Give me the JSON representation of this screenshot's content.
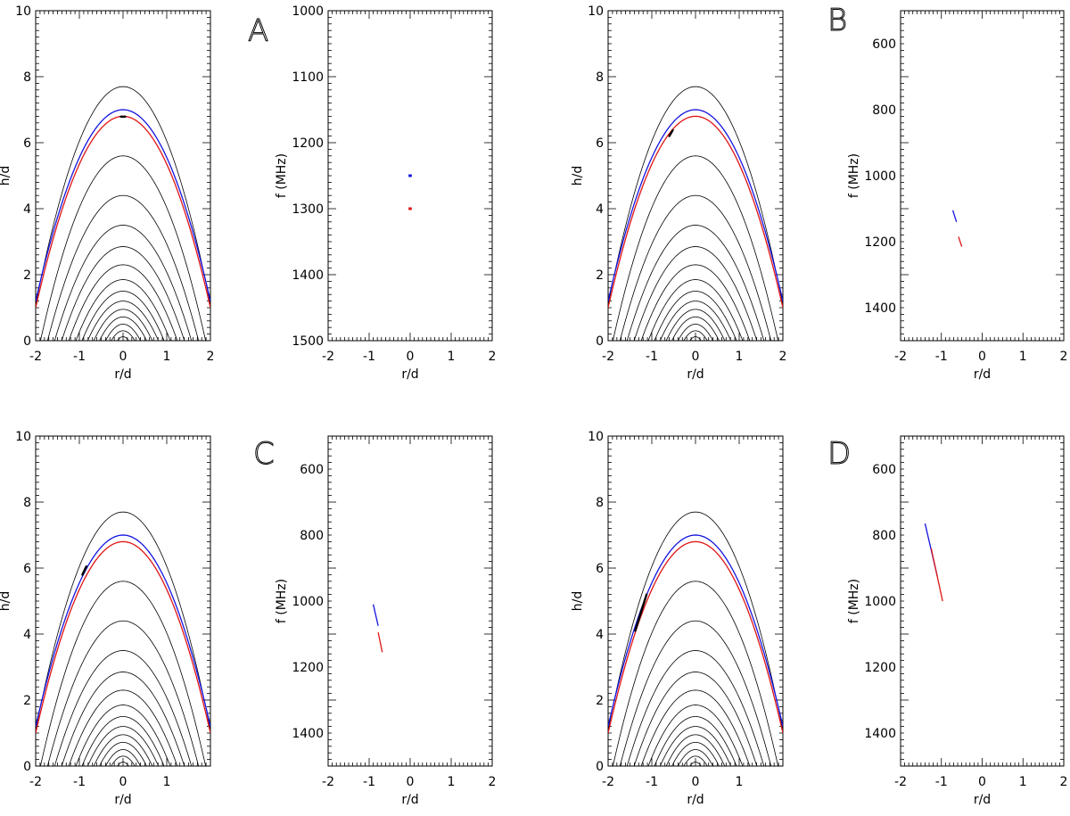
{
  "chart_data": [
    {
      "panel": "A",
      "left": {
        "type": "line",
        "xlabel": "r/d",
        "ylabel": "h/d",
        "xlim": [
          -2,
          2
        ],
        "ylim": [
          0,
          10
        ],
        "x_ticks": [
          "-2",
          "-1",
          "0",
          "1",
          "2"
        ],
        "y_ticks": [
          "0",
          "2",
          "4",
          "6",
          "8",
          "10"
        ],
        "field_line_peaks": [
          7.7,
          5.6,
          4.4,
          3.5,
          2.85,
          2.3,
          1.85,
          1.5,
          1.2,
          0.95,
          0.72,
          0.5,
          0.3,
          0.12
        ],
        "field_line_half_widths": [
          2.0,
          1.75,
          1.6,
          1.45,
          1.3,
          1.15,
          1.0,
          0.87,
          0.75,
          0.62,
          0.5,
          0.37,
          0.25,
          0.12
        ],
        "series": [
          {
            "name": "blue",
            "color": "#1414e0",
            "peak": 7.0,
            "edge_h": 1.2,
            "half_width": 2.0
          },
          {
            "name": "red",
            "color": "#e01414",
            "peak": 6.8,
            "edge_h": 1.0,
            "half_width": 2.0
          }
        ],
        "marker_segment": [
          [
            -0.05,
            6.79
          ],
          [
            0.05,
            6.79
          ]
        ]
      },
      "right": {
        "type": "line",
        "xlabel": "r/d",
        "ylabel": "f (MHz)",
        "xlim": [
          -2,
          2
        ],
        "ylim": [
          1000,
          1500
        ],
        "y_inverted": true,
        "x_ticks": [
          "-2",
          "-1",
          "0",
          "1",
          "2"
        ],
        "y_ticks": [
          "1000",
          "1100",
          "1200",
          "1300",
          "1400",
          "1500"
        ],
        "series": [
          {
            "name": "blue",
            "color": "#1414e0",
            "x": [
              -0.04,
              0.04
            ],
            "y": [
              1250,
              1250
            ]
          },
          {
            "name": "red",
            "color": "#e01414",
            "x": [
              -0.04,
              0.04
            ],
            "y": [
              1300,
              1300
            ]
          }
        ]
      }
    },
    {
      "panel": "B",
      "left": {
        "type": "line",
        "xlabel": "r/d",
        "ylabel": "h/d",
        "xlim": [
          -2,
          2
        ],
        "ylim": [
          0,
          10
        ],
        "x_ticks": [
          "-2",
          "-1",
          "0",
          "1",
          "2"
        ],
        "y_ticks": [
          "0",
          "2",
          "4",
          "6",
          "8",
          "10"
        ],
        "field_line_peaks": [
          7.7,
          5.6,
          4.4,
          3.5,
          2.85,
          2.3,
          1.85,
          1.5,
          1.2,
          0.95,
          0.72,
          0.5,
          0.3,
          0.12
        ],
        "field_line_half_widths": [
          2.0,
          1.75,
          1.6,
          1.45,
          1.3,
          1.15,
          1.0,
          0.87,
          0.75,
          0.62,
          0.5,
          0.37,
          0.25,
          0.12
        ],
        "series": [
          {
            "name": "blue",
            "color": "#1414e0",
            "peak": 7.0,
            "edge_h": 1.2,
            "half_width": 2.0
          },
          {
            "name": "red",
            "color": "#e01414",
            "peak": 6.8,
            "edge_h": 1.0,
            "half_width": 2.0
          }
        ],
        "marker_segment": [
          [
            -0.6,
            6.2
          ],
          [
            -0.52,
            6.38
          ]
        ]
      },
      "right": {
        "type": "line",
        "xlabel": "r/d",
        "ylabel": "f (MHz)",
        "xlim": [
          -2,
          2
        ],
        "ylim": [
          500,
          1500
        ],
        "y_inverted": true,
        "x_ticks": [
          "-2",
          "-1",
          "0",
          "1",
          "2"
        ],
        "y_ticks": [
          "600",
          "800",
          "1000",
          "1200",
          "1400"
        ],
        "series": [
          {
            "name": "blue",
            "color": "#1414e0",
            "x": [
              -0.72,
              -0.63
            ],
            "y": [
              1105,
              1140
            ]
          },
          {
            "name": "red",
            "color": "#e01414",
            "x": [
              -0.58,
              -0.5
            ],
            "y": [
              1185,
              1215
            ]
          }
        ]
      }
    },
    {
      "panel": "C",
      "left": {
        "type": "line",
        "xlabel": "r/d",
        "ylabel": "h/d",
        "xlim": [
          -2,
          2
        ],
        "ylim": [
          0,
          10
        ],
        "x_ticks": [
          "-2",
          "-1",
          "0",
          "1"
        ],
        "y_ticks": [
          "0",
          "2",
          "4",
          "6",
          "8",
          "10"
        ],
        "field_line_peaks": [
          7.7,
          5.6,
          4.4,
          3.5,
          2.85,
          2.3,
          1.85,
          1.5,
          1.2,
          0.95,
          0.72,
          0.5,
          0.3,
          0.12
        ],
        "field_line_half_widths": [
          2.0,
          1.75,
          1.6,
          1.45,
          1.3,
          1.15,
          1.0,
          0.87,
          0.75,
          0.62,
          0.5,
          0.37,
          0.25,
          0.12
        ],
        "series": [
          {
            "name": "blue",
            "color": "#1414e0",
            "peak": 7.0,
            "edge_h": 1.2,
            "half_width": 2.0
          },
          {
            "name": "red",
            "color": "#e01414",
            "peak": 6.8,
            "edge_h": 1.0,
            "half_width": 2.0
          }
        ],
        "marker_segment": [
          [
            -0.93,
            5.8
          ],
          [
            -0.84,
            6.05
          ]
        ]
      },
      "right": {
        "type": "line",
        "xlabel": "r/d",
        "ylabel": "f (MHz)",
        "xlim": [
          -2,
          2
        ],
        "ylim": [
          500,
          1500
        ],
        "y_inverted": true,
        "x_ticks": [
          "-2",
          "-1",
          "0",
          "1",
          "2"
        ],
        "y_ticks": [
          "600",
          "800",
          "1000",
          "1200",
          "1400"
        ],
        "series": [
          {
            "name": "blue",
            "color": "#1414e0",
            "x": [
              -0.9,
              -0.78
            ],
            "y": [
              1010,
              1075
            ]
          },
          {
            "name": "red",
            "color": "#e01414",
            "x": [
              -0.78,
              -0.68
            ],
            "y": [
              1095,
              1155
            ]
          }
        ]
      }
    },
    {
      "panel": "D",
      "left": {
        "type": "line",
        "xlabel": "r/d",
        "ylabel": "h/d",
        "xlim": [
          -2,
          2
        ],
        "ylim": [
          0,
          10
        ],
        "x_ticks": [
          "-2",
          "-1",
          "0",
          "1"
        ],
        "y_ticks": [
          "0",
          "2",
          "4",
          "6",
          "8",
          "10"
        ],
        "field_line_peaks": [
          7.7,
          5.6,
          4.4,
          3.5,
          2.85,
          2.3,
          1.85,
          1.5,
          1.2,
          0.95,
          0.72,
          0.5,
          0.3,
          0.12
        ],
        "field_line_half_widths": [
          2.0,
          1.75,
          1.6,
          1.45,
          1.3,
          1.15,
          1.0,
          0.87,
          0.75,
          0.62,
          0.5,
          0.37,
          0.25,
          0.12
        ],
        "series": [
          {
            "name": "blue",
            "color": "#1414e0",
            "peak": 7.0,
            "edge_h": 1.2,
            "half_width": 2.0
          },
          {
            "name": "red",
            "color": "#e01414",
            "peak": 6.8,
            "edge_h": 1.0,
            "half_width": 2.0
          }
        ],
        "marker_segment": [
          [
            -1.38,
            4.1
          ],
          [
            -1.12,
            5.2
          ]
        ]
      },
      "right": {
        "type": "line",
        "xlabel": "r/d",
        "ylabel": "f (MHz)",
        "xlim": [
          -2,
          2
        ],
        "ylim": [
          500,
          1500
        ],
        "y_inverted": true,
        "x_ticks": [
          "-2",
          "-1",
          "0",
          "1",
          "2"
        ],
        "y_ticks": [
          "600",
          "800",
          "1000",
          "1200",
          "1400"
        ],
        "series": [
          {
            "name": "blue",
            "color": "#1414e0",
            "x": [
              -1.4,
              -1.1
            ],
            "y": [
              765,
              925
            ]
          },
          {
            "name": "red",
            "color": "#e01414",
            "x": [
              -1.25,
              -0.97
            ],
            "y": [
              840,
              1000
            ]
          }
        ]
      }
    }
  ]
}
